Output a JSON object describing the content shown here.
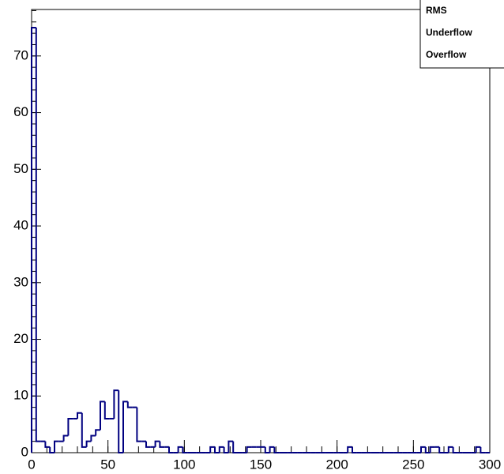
{
  "chart_data": {
    "type": "histogram",
    "color": "#000080",
    "bins": [
      0,
      3,
      6,
      9,
      12,
      15,
      18,
      21,
      24,
      27,
      30,
      33,
      36,
      39,
      42,
      45,
      48,
      51,
      54,
      57,
      60,
      63,
      66,
      69,
      72,
      75,
      78,
      81,
      84,
      87,
      90,
      93,
      96,
      99,
      102,
      105,
      108,
      111,
      114,
      117,
      120,
      123,
      126,
      129,
      132,
      135,
      138,
      141,
      144,
      147,
      150,
      153,
      156,
      159,
      162,
      165,
      168,
      171,
      174,
      177,
      180,
      183,
      186,
      189,
      192,
      195,
      198,
      201,
      204,
      207,
      210,
      213,
      216,
      219,
      222,
      225,
      228,
      231,
      234,
      237,
      240,
      243,
      246,
      249,
      252,
      255,
      258,
      261,
      264,
      267,
      270,
      273,
      276,
      279,
      282,
      285,
      288,
      291,
      294,
      297,
      300
    ],
    "values": [
      75,
      2,
      2,
      1,
      0,
      2,
      2,
      3,
      6,
      6,
      7,
      1,
      2,
      3,
      4,
      9,
      6,
      6,
      11,
      0,
      9,
      8,
      8,
      2,
      2,
      1,
      1,
      2,
      1,
      1,
      0,
      0,
      1,
      0,
      0,
      0,
      0,
      0,
      0,
      1,
      0,
      1,
      0,
      2,
      0,
      0,
      0,
      1,
      1,
      1,
      1,
      0,
      1,
      0,
      0,
      0,
      0,
      0,
      0,
      0,
      0,
      0,
      0,
      0,
      0,
      0,
      0,
      0,
      0,
      1,
      0,
      0,
      0,
      0,
      0,
      0,
      0,
      0,
      0,
      0,
      0,
      0,
      0,
      0,
      0,
      1,
      0,
      1,
      1,
      0,
      0,
      1,
      0,
      0,
      0,
      0,
      0,
      1,
      0,
      0
    ],
    "xlim": [
      0,
      300
    ],
    "xticks": [
      0,
      50,
      100,
      150,
      200,
      250,
      300
    ],
    "ylim": [
      0,
      78.2
    ],
    "yticks": [
      0,
      10,
      20,
      30,
      40,
      50,
      60,
      70
    ],
    "stats": [
      "RMS",
      "Underflow",
      "Overflow"
    ]
  }
}
